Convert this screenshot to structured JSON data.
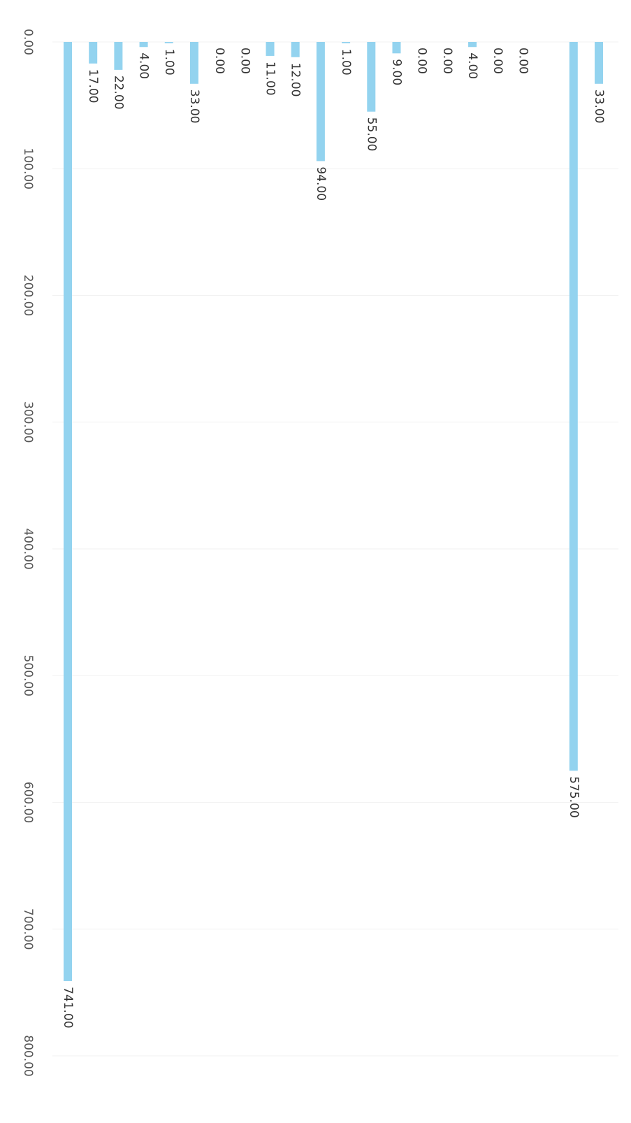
{
  "chart_data": {
    "type": "bar",
    "orientation": "rotated",
    "categories": [
      null,
      null,
      null,
      null,
      null,
      null,
      null,
      null,
      null,
      null,
      null,
      null,
      null,
      null,
      null,
      null,
      null,
      null,
      null,
      null,
      null,
      null
    ],
    "values": [
      741,
      17,
      22,
      4,
      1,
      33,
      0,
      0,
      11,
      12,
      94,
      1,
      55,
      9,
      0,
      0,
      4,
      0,
      0,
      null,
      575,
      33
    ],
    "value_labels": [
      "741.00",
      "17.00",
      "22.00",
      "4.00",
      "1.00",
      "33.00",
      "0.00",
      "0.00",
      "11.00",
      "12.00",
      "94.00",
      "1.00",
      "55.00",
      "9.00",
      "0.00",
      "0.00",
      "4.00",
      "0.00",
      "0.00",
      null,
      "575.00",
      "33.00"
    ],
    "color": "#93d3ef",
    "ylim": [
      0,
      800
    ],
    "yticks": [
      {
        "value": 0,
        "label": "0.00"
      },
      {
        "value": 100,
        "label": "100.00"
      },
      {
        "value": 200,
        "label": "200.00"
      },
      {
        "value": 300,
        "label": "300.00"
      },
      {
        "value": 400,
        "label": "400.00"
      },
      {
        "value": 500,
        "label": "500.00"
      },
      {
        "value": 600,
        "label": "600.00"
      },
      {
        "value": 700,
        "label": "700.00"
      },
      {
        "value": 800,
        "label": "800.00"
      }
    ],
    "grid": true
  }
}
